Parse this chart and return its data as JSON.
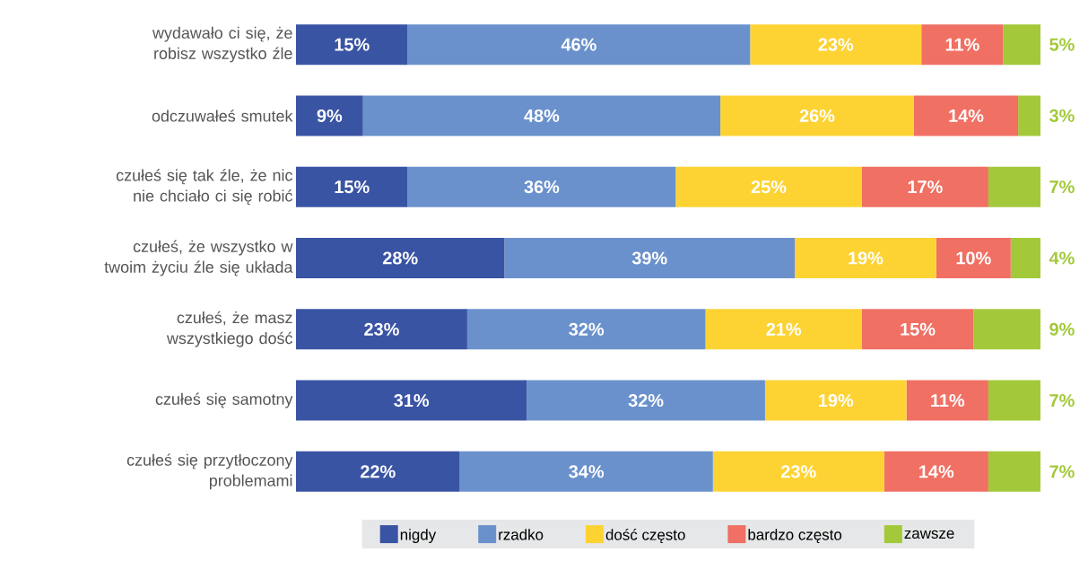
{
  "chart_data": {
    "type": "bar",
    "orientation": "horizontal",
    "stacked": true,
    "legend": "bottom",
    "categories": [
      "wydawało ci się, że robisz wszystko źle",
      "odczuwałeś smutek",
      "czułeś się tak źle, że nic nie chciało ci się robić",
      "czułeś, że wszystko w twoim życiu źle się układa",
      "czułeś, że masz wszystkiego dość",
      "czułeś się samotny",
      "czułeś się przytłoczony problemami"
    ],
    "series": [
      {
        "name": "nigdy",
        "color": "#3a54a4",
        "values": [
          15,
          9,
          15,
          28,
          23,
          31,
          22
        ],
        "value_labels": [
          "15%",
          "9%",
          "15%",
          "28%",
          "23%",
          "31%",
          "22%"
        ]
      },
      {
        "name": "rzadko",
        "color": "#6a91cc",
        "values": [
          46,
          48,
          36,
          39,
          32,
          32,
          34
        ],
        "value_labels": [
          "46%",
          "48%",
          "36%",
          "39%",
          "32%",
          "32%",
          "34%"
        ]
      },
      {
        "name": "dość często",
        "color": "#fdd334",
        "values": [
          23,
          26,
          25,
          19,
          21,
          19,
          23
        ],
        "value_labels": [
          "23%",
          "26%",
          "25%",
          "19%",
          "21%",
          "19%",
          "23%"
        ]
      },
      {
        "name": "bardzo często",
        "color": "#f07064",
        "values": [
          11,
          14,
          17,
          10,
          15,
          11,
          14
        ],
        "value_labels": [
          "11%",
          "14%",
          "17%",
          "10%",
          "15%",
          "11%",
          "14%"
        ]
      },
      {
        "name": "zawsze",
        "color": "#a3c93a",
        "values": [
          5,
          3,
          7,
          4,
          9,
          7,
          7
        ],
        "value_labels": [
          "5%",
          "3%",
          "7%",
          "4%",
          "9%",
          "7%",
          "7%"
        ]
      }
    ]
  }
}
